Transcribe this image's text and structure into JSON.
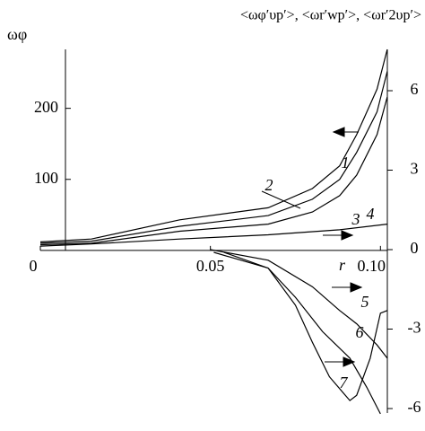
{
  "chart_data": {
    "type": "line",
    "y_label": "ωφ",
    "y2_label": "<ωφ′υp′>, <ωr′wp′>, <ωr′2υp′>",
    "x_label": "r",
    "xlim": [
      0,
      0.1015
    ],
    "xticks": [
      0,
      0.05,
      {
        "value": 0.1,
        "label": "0.10"
      }
    ],
    "ylim": [
      -229,
      283
    ],
    "yticks": [
      100,
      200
    ],
    "y2lim": [
      -6.17,
      7.56
    ],
    "y2ticks": [
      6,
      3,
      0,
      -3,
      -6
    ],
    "series": [
      {
        "name": "1",
        "color": "#000000",
        "x": [
          0,
          0.015,
          0.041,
          0.067,
          0.08,
          0.088,
          0.093,
          0.099,
          0.102
        ],
        "values": [
          12,
          16,
          43,
          60,
          87,
          119,
          163,
          227,
          283
        ]
      },
      {
        "name": "2",
        "color": "#000000",
        "x": [
          0,
          0.015,
          0.041,
          0.067,
          0.08,
          0.088,
          0.093,
          0.099,
          0.102
        ],
        "values": [
          10,
          13,
          34,
          49,
          72,
          100,
          138,
          195,
          252
        ]
      },
      {
        "name": "3",
        "color": "#000000",
        "x": [
          0,
          0.015,
          0.041,
          0.067,
          0.08,
          0.088,
          0.093,
          0.099,
          0.102
        ],
        "values": [
          8,
          10,
          27,
          37,
          54,
          77,
          106,
          163,
          216
        ]
      },
      {
        "name": "4",
        "color": "#000000",
        "x": [
          0,
          0.015,
          0.041,
          0.067,
          0.088,
          0.102
        ],
        "values": [
          6,
          9,
          16,
          22,
          29,
          37
        ]
      },
      {
        "name": "5",
        "color": "#000000",
        "axis": "y2",
        "x": [
          0.05,
          0.067,
          0.08,
          0.088,
          0.093,
          0.099,
          0.102
        ],
        "values": [
          0,
          -0.4,
          -1.4,
          -2.3,
          -2.8,
          -3.6,
          -4.1
        ]
      },
      {
        "name": "6",
        "color": "#000000",
        "axis": "y2",
        "x": [
          0.051,
          0.067,
          0.075,
          0.083,
          0.091,
          0.096,
          0.1
        ],
        "values": [
          -0.1,
          -0.7,
          -1.8,
          -3.1,
          -4.1,
          -5.2,
          -6.2
        ]
      },
      {
        "name": "7",
        "color": "#000000",
        "axis": "y2",
        "x": [
          0.054,
          0.067,
          0.075,
          0.08,
          0.085,
          0.091,
          0.093,
          0.097,
          0.1,
          0.102
        ],
        "values": [
          -0.1,
          -0.7,
          -2.1,
          -3.5,
          -4.8,
          -5.7,
          -5.5,
          -4.1,
          -2.4,
          -2.3
        ]
      }
    ]
  }
}
